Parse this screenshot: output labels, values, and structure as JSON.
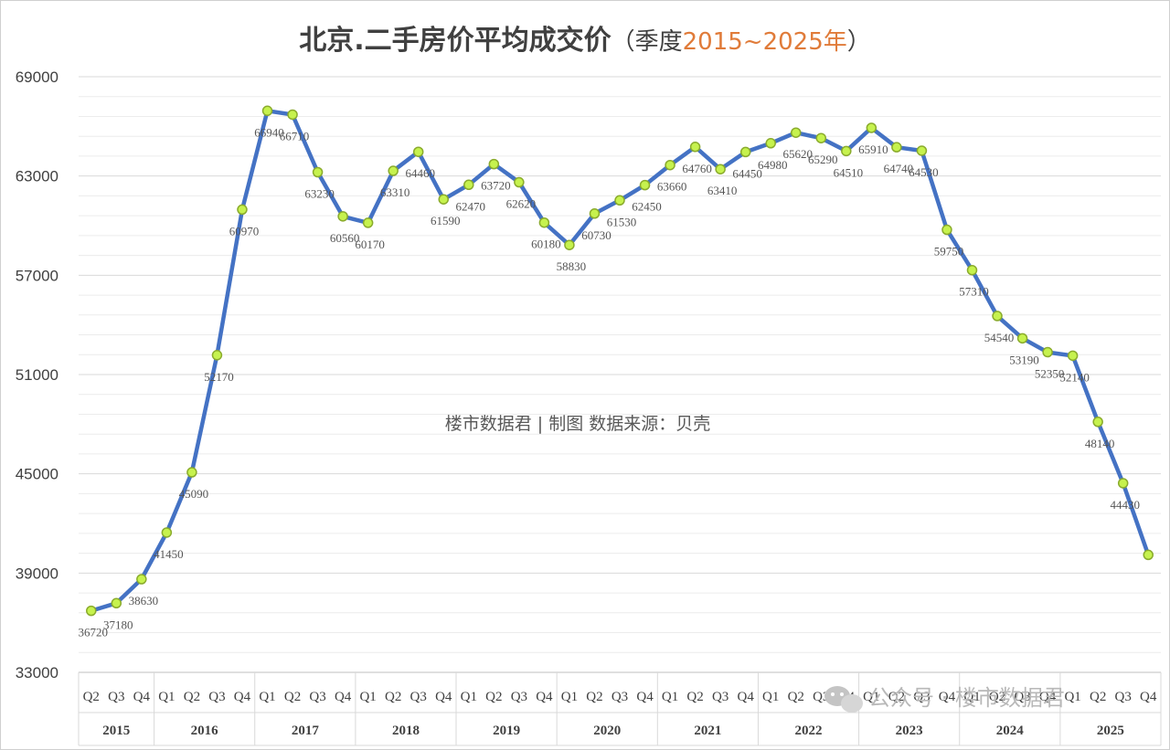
{
  "chart_data": {
    "type": "line",
    "title": "北京.二手房价平均成交价",
    "subtitle_prefix": "（季度",
    "subtitle_range": "2015~2025年",
    "subtitle_suffix": "）",
    "annotation": "楼市数据君 | 制图    数据来源：贝壳",
    "ylim": [
      33000,
      69000
    ],
    "yticks": [
      33000,
      39000,
      45000,
      51000,
      57000,
      63000,
      69000
    ],
    "grid": true,
    "colors": {
      "line": "#4472c4",
      "marker_fill": "#c6f24e",
      "marker_stroke": "#8aab2c",
      "accent": "#e07b39",
      "grid": "#d9d9d9"
    },
    "x": [
      {
        "q": "Q2"
      },
      {
        "q": "Q3"
      },
      {
        "q": "Q4"
      },
      {
        "q": "Q1"
      },
      {
        "q": "Q2"
      },
      {
        "q": "Q3"
      },
      {
        "q": "Q4"
      },
      {
        "q": "Q1"
      },
      {
        "q": "Q2"
      },
      {
        "q": "Q3"
      },
      {
        "q": "Q4"
      },
      {
        "q": "Q1"
      },
      {
        "q": "Q2"
      },
      {
        "q": "Q3"
      },
      {
        "q": "Q4"
      },
      {
        "q": "Q1"
      },
      {
        "q": "Q2"
      },
      {
        "q": "Q3"
      },
      {
        "q": "Q4"
      },
      {
        "q": "Q1"
      },
      {
        "q": "Q2"
      },
      {
        "q": "Q3"
      },
      {
        "q": "Q4"
      },
      {
        "q": "Q1"
      },
      {
        "q": "Q2"
      },
      {
        "q": "Q3"
      },
      {
        "q": "Q4"
      },
      {
        "q": "Q1"
      },
      {
        "q": "Q2"
      },
      {
        "q": "Q3"
      },
      {
        "q": "Q4"
      },
      {
        "q": "Q1"
      },
      {
        "q": "Q2"
      },
      {
        "q": "Q3"
      },
      {
        "q": "Q4"
      },
      {
        "q": "Q1"
      },
      {
        "q": "Q2"
      },
      {
        "q": "Q3"
      },
      {
        "q": "Q4"
      },
      {
        "q": "Q1"
      },
      {
        "q": "Q2"
      },
      {
        "q": "Q3"
      },
      {
        "q": "Q4"
      }
    ],
    "years": [
      {
        "label": "2015",
        "count": 3
      },
      {
        "label": "2016",
        "count": 4
      },
      {
        "label": "2017",
        "count": 4
      },
      {
        "label": "2018",
        "count": 4
      },
      {
        "label": "2019",
        "count": 4
      },
      {
        "label": "2020",
        "count": 4
      },
      {
        "label": "2021",
        "count": 4
      },
      {
        "label": "2022",
        "count": 4
      },
      {
        "label": "2023",
        "count": 4
      },
      {
        "label": "2024",
        "count": 4
      },
      {
        "label": "2025",
        "count": 4
      }
    ],
    "values": [
      36720,
      37180,
      38630,
      41450,
      45090,
      52170,
      60970,
      66940,
      66710,
      63230,
      60560,
      60170,
      63310,
      64460,
      61590,
      62470,
      63720,
      62620,
      60180,
      58830,
      60730,
      61530,
      62450,
      63660,
      64760,
      63410,
      64450,
      64980,
      65620,
      65290,
      64510,
      65910,
      64740,
      64530,
      59750,
      57310,
      54540,
      53190,
      52350,
      52140,
      48140,
      44430,
      40100
    ],
    "labels": [
      "36720",
      "37180",
      "38630",
      "41450",
      "45090",
      "52170",
      "60970",
      "66940",
      "66710",
      "63230",
      "60560",
      "60170",
      "63310",
      "64460",
      "61590",
      "62470",
      "63720",
      "62620",
      "60180",
      "58830",
      "60730",
      "61530",
      "62450",
      "63660",
      "64760",
      "63410",
      "64450",
      "64980",
      "65620",
      "65290",
      "64510",
      "65910",
      "64740",
      "64530",
      "59750",
      "57310",
      "54540",
      "53190",
      "52350",
      "52140",
      "48140",
      "44430",
      ""
    ]
  },
  "watermark": {
    "icon": "wechat-icon",
    "text": "公众号 · 楼市数据君"
  }
}
